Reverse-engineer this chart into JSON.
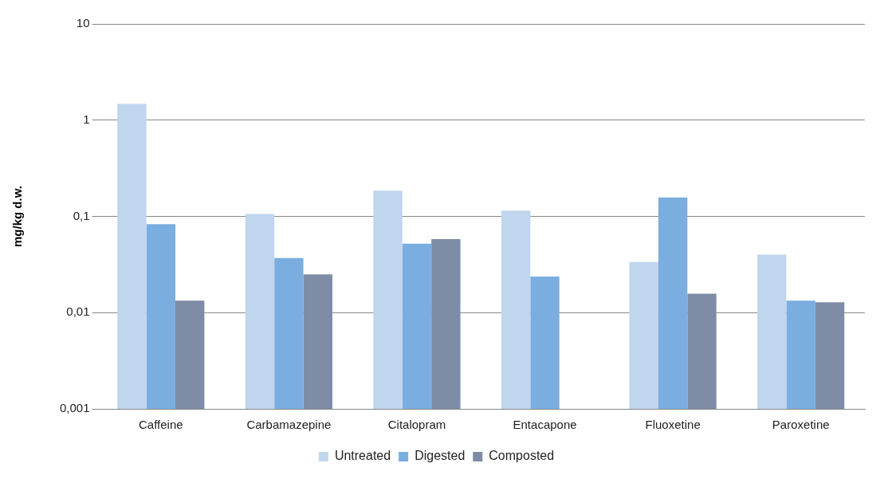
{
  "chart_data": {
    "type": "bar",
    "ylabel": "mg/kg d.w.",
    "categories": [
      "Caffeine",
      "Carbamazepine",
      "Citalopram",
      "Entacapone",
      "Fluoxetine",
      "Paroxetine"
    ],
    "series": [
      {
        "name": "Untreated",
        "color": "#c0d6ee",
        "values": [
          1.48,
          0.106,
          0.185,
          0.115,
          0.0335,
          0.04
        ]
      },
      {
        "name": "Digested",
        "color": "#7aaee0",
        "values": [
          0.083,
          0.037,
          0.052,
          0.0237,
          0.157,
          0.0133
        ]
      },
      {
        "name": "Composted",
        "color": "#7f8ca6",
        "values": [
          0.0133,
          0.025,
          0.058,
          null,
          0.0157,
          0.0128
        ]
      }
    ],
    "log": true,
    "ylim": [
      0.001,
      10
    ],
    "yticks": [
      {
        "value": 0.001,
        "label": "0,001"
      },
      {
        "value": 0.01,
        "label": "0,01"
      },
      {
        "value": 0.1,
        "label": "0,1"
      },
      1,
      10
    ],
    "grid": "y",
    "legend": "bottom"
  }
}
